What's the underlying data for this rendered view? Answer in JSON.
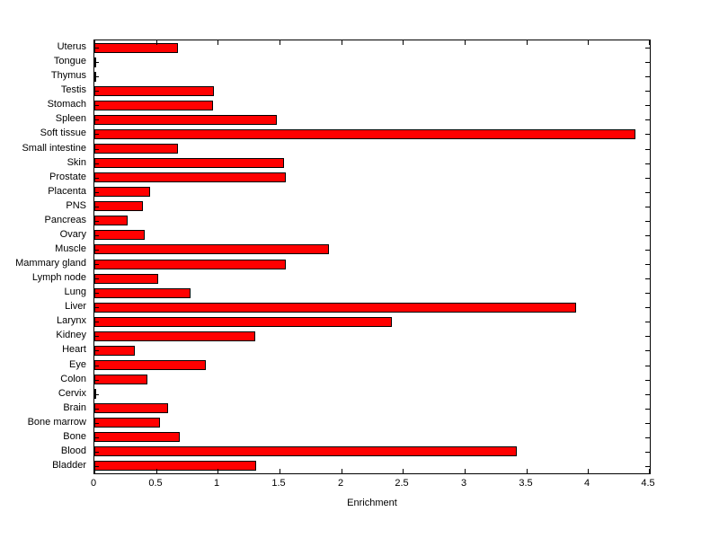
{
  "chart_data": {
    "type": "bar",
    "orientation": "horizontal",
    "title": "",
    "xlabel": "Enrichment",
    "ylabel": "",
    "xlim": [
      0,
      4.5
    ],
    "xticks": [
      0,
      0.5,
      1,
      1.5,
      2,
      2.5,
      3,
      3.5,
      4,
      4.5
    ],
    "xtick_labels": [
      "0",
      "0.5",
      "1",
      "1.5",
      "2",
      "2.5",
      "3",
      "3.5",
      "4",
      "4.5"
    ],
    "categories": [
      "Uterus",
      "Tongue",
      "Thymus",
      "Testis",
      "Stomach",
      "Spleen",
      "Soft tissue",
      "Small intestine",
      "Skin",
      "Prostate",
      "Placenta",
      "PNS",
      "Pancreas",
      "Ovary",
      "Muscle",
      "Mammary gland",
      "Lymph node",
      "Lung",
      "Liver",
      "Larynx",
      "Kidney",
      "Heart",
      "Eye",
      "Colon",
      "Cervix",
      "Brain",
      "Bone marrow",
      "Bone",
      "Blood",
      "Bladder"
    ],
    "values": [
      0.68,
      0.01,
      0.01,
      0.97,
      0.96,
      1.48,
      4.38,
      0.68,
      1.54,
      1.55,
      0.45,
      0.39,
      0.27,
      0.41,
      1.9,
      1.55,
      0.52,
      0.78,
      3.9,
      2.41,
      1.3,
      0.33,
      0.9,
      0.43,
      0.01,
      0.6,
      0.53,
      0.69,
      3.42,
      1.31
    ],
    "bar_color": "#ff0000",
    "bar_edge_color": "#000000",
    "axes_color": "#000000",
    "background": "#ffffff",
    "grid": false,
    "legend": false
  }
}
